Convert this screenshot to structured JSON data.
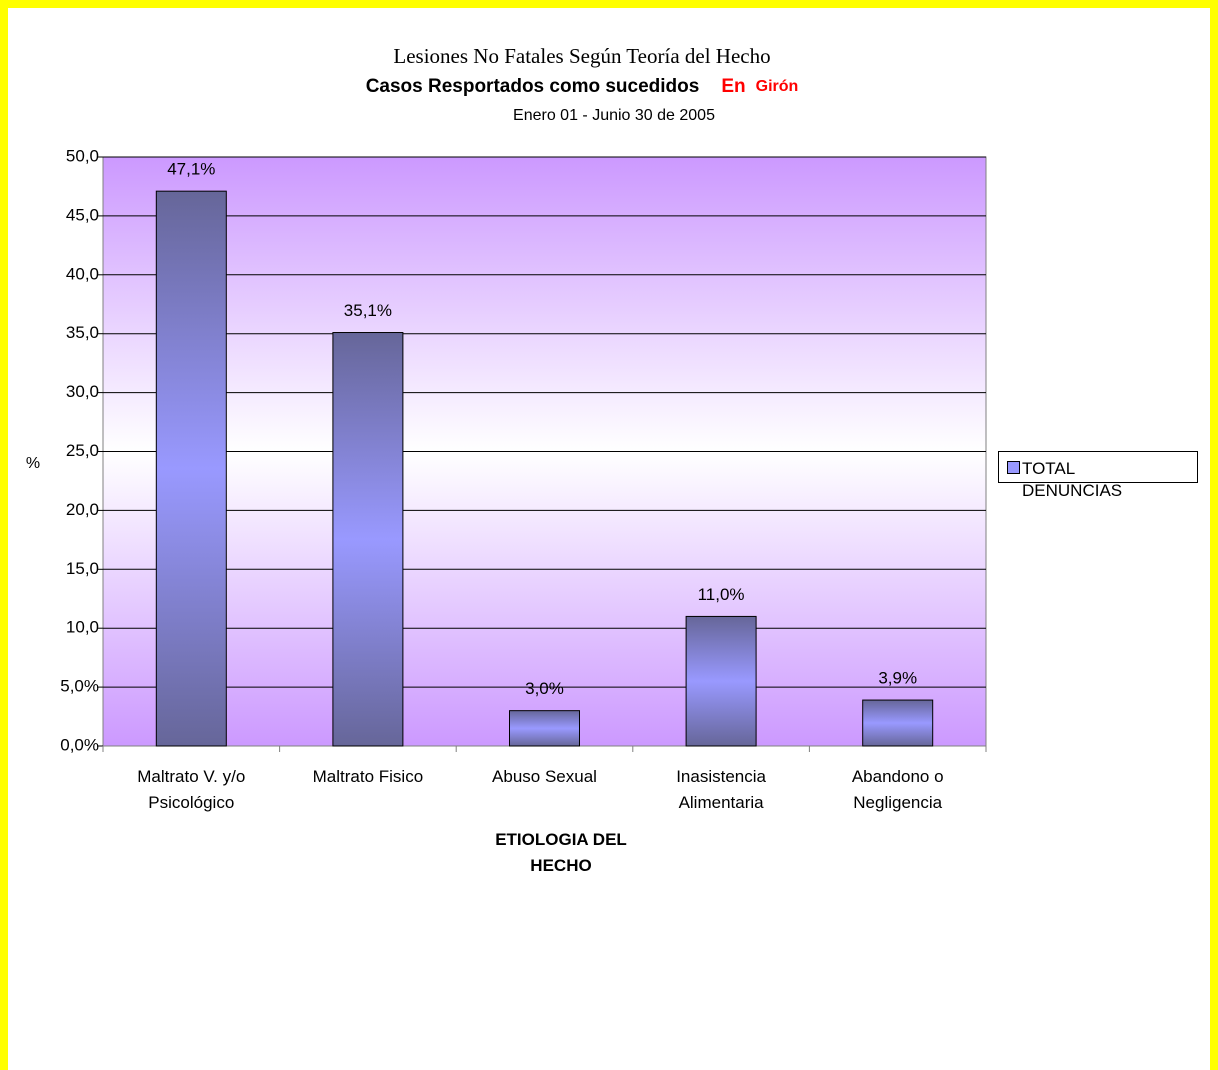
{
  "chart_data": {
    "type": "bar",
    "title": "Lesiones No Fatales Según Teoría del Hecho",
    "subtitle": "Casos Resportados como sucedidos",
    "subtitle_in": "En",
    "subtitle_place": "Girón",
    "date_range": "Enero 01 - Junio 30 de 2005",
    "x_label": "ETIOLOGIA DEL HECHO",
    "y_label": "%",
    "categories": [
      "Maltrato V. y/o Psicológico",
      "Maltrato Fisico",
      "Abuso Sexual",
      "Inasistencia Alimentaria",
      "Abandono o Negligencia"
    ],
    "series": [
      {
        "name": "TOTAL DENUNCIAS",
        "color": "#9999ff",
        "values": [
          47.1,
          35.1,
          3.0,
          11.0,
          3.9
        ],
        "value_labels": [
          "47,1%",
          "35,1%",
          "3,0%",
          "11,0%",
          "3,9%"
        ]
      }
    ],
    "ylim": [
      0,
      50
    ],
    "yticks": [
      {
        "value": 0,
        "label": "0,0%"
      },
      {
        "value": 5,
        "label": "5,0%"
      },
      {
        "value": 10,
        "label": "10,0"
      },
      {
        "value": 15,
        "label": "15,0"
      },
      {
        "value": 20,
        "label": "20,0"
      },
      {
        "value": 25,
        "label": "25,0"
      },
      {
        "value": 30,
        "label": "30,0"
      },
      {
        "value": 35,
        "label": "35,0"
      },
      {
        "value": 40,
        "label": "40,0"
      },
      {
        "value": 45,
        "label": "45,0"
      },
      {
        "value": 50,
        "label": "50,0"
      }
    ],
    "grid": true,
    "legend": "right"
  }
}
